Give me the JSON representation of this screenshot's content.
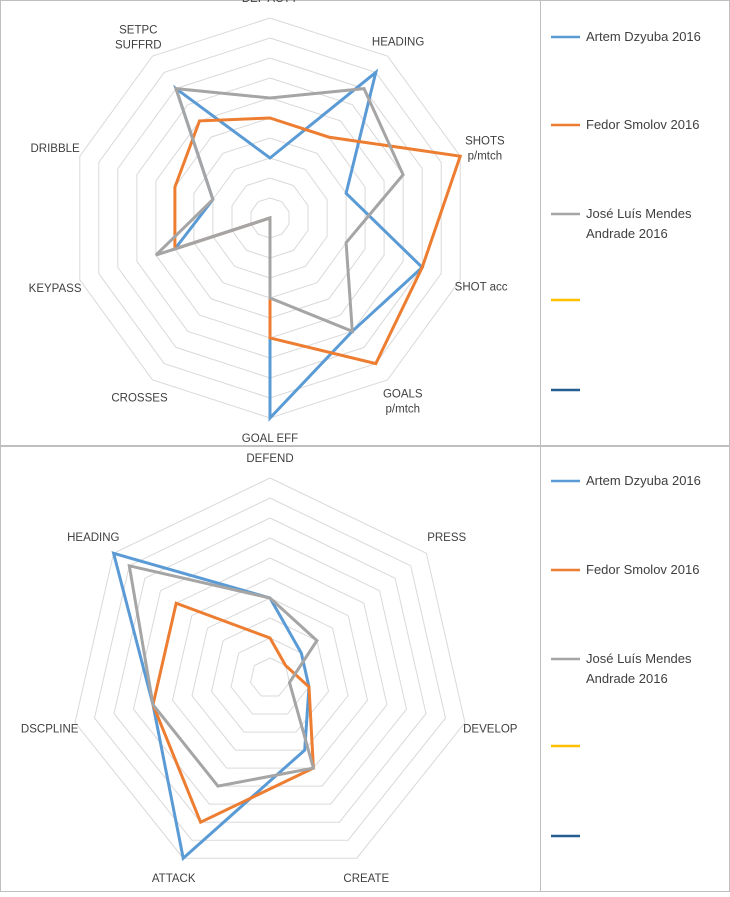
{
  "chart_data": [
    {
      "type": "radar",
      "axes": [
        "DEF ACTY",
        "HEADING",
        "SHOTS\np/mtch",
        "SHOT acc",
        "GOALS\np/mtch",
        "GOAL EFF",
        "CROSSES",
        "KEYPASS",
        "DRIBBLE",
        "SETPC\nSUFFRD"
      ],
      "rmax": 10,
      "grid_levels": 10,
      "series": [
        {
          "name": "Artem Dzyuba 2016",
          "color": "#5b9bd5",
          "values": [
            3,
            9,
            4,
            8,
            7,
            10,
            0,
            5,
            3,
            8
          ]
        },
        {
          "name": "Fedor Smolov 2016",
          "color": "#ed7d31",
          "values": [
            5,
            5,
            10,
            8,
            9,
            6,
            0,
            5,
            5,
            6
          ]
        },
        {
          "name": "José Luís Mendes Andrade 2016",
          "color": "#a5a5a5",
          "values": [
            6,
            8,
            7,
            4,
            7,
            4,
            0,
            6,
            3,
            8
          ]
        },
        {
          "name": "",
          "color": "#ffc000",
          "values": []
        },
        {
          "name": "",
          "color": "#255e91",
          "values": []
        }
      ]
    },
    {
      "type": "radar",
      "axes": [
        "DEFEND",
        "PRESS",
        "DEVELOP",
        "CREATE",
        "ATTACK",
        "DSCPLINE",
        "HEADING"
      ],
      "rmax": 10,
      "grid_levels": 10,
      "series": [
        {
          "name": "Artem Dzyuba 2016",
          "color": "#5b9bd5",
          "values": [
            4,
            2,
            2,
            4,
            10,
            6,
            10
          ]
        },
        {
          "name": "Fedor Smolov 2016",
          "color": "#ed7d31",
          "values": [
            2,
            1,
            2,
            5,
            8,
            6,
            6
          ]
        },
        {
          "name": "José Luís Mendes Andrade 2016",
          "color": "#a5a5a5",
          "values": [
            4,
            3,
            1,
            5,
            6,
            6,
            9
          ]
        },
        {
          "name": "",
          "color": "#ffc000",
          "values": []
        },
        {
          "name": "",
          "color": "#255e91",
          "values": []
        }
      ]
    }
  ]
}
